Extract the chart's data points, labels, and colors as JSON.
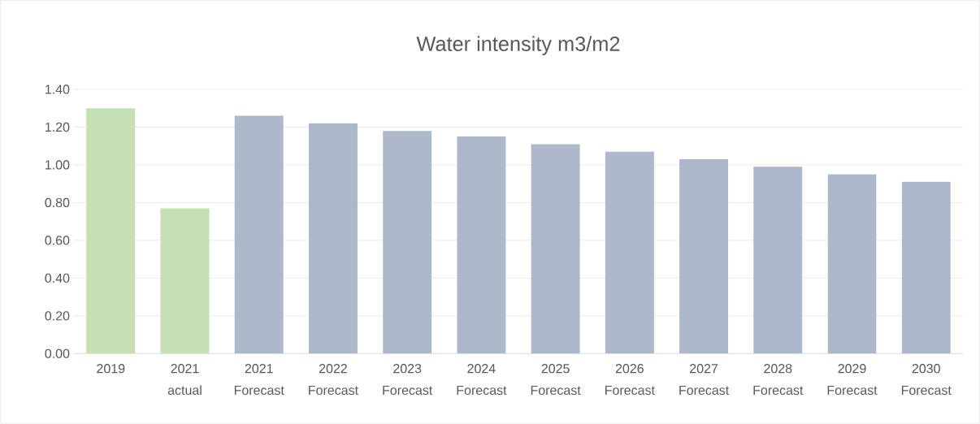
{
  "chart_data": {
    "type": "bar",
    "title": "Water intensity m3/m2",
    "categories": [
      "2019",
      "2021 actual",
      "2021 Forecast",
      "2022 Forecast",
      "2023 Forecast",
      "2024 Forecast",
      "2025 Forecast",
      "2026 Forecast",
      "2027 Forecast",
      "2028 Forecast",
      "2029 Forecast",
      "2030 Forecast"
    ],
    "values": [
      1.3,
      0.77,
      1.26,
      1.22,
      1.18,
      1.15,
      1.11,
      1.07,
      1.03,
      0.99,
      0.95,
      0.91
    ],
    "colors": [
      "#c5e0b4",
      "#c5e0b4",
      "#adb9ca",
      "#adb9ca",
      "#adb9ca",
      "#adb9ca",
      "#adb9ca",
      "#adb9ca",
      "#adb9ca",
      "#adb9ca",
      "#adb9ca",
      "#adb9ca"
    ],
    "ylim": [
      0,
      1.4
    ],
    "yticks": [
      {
        "value": 0,
        "label": "0.00"
      },
      {
        "value": 0.2,
        "label": "0.20"
      },
      {
        "value": 0.4,
        "label": "0.40"
      },
      {
        "value": 0.6,
        "label": "0.60"
      },
      {
        "value": 0.8,
        "label": "0.80"
      },
      {
        "value": 1.0,
        "label": "1.00"
      },
      {
        "value": 1.2,
        "label": "1.20"
      },
      {
        "value": 1.4,
        "label": "1.40"
      }
    ],
    "grid": "y"
  }
}
